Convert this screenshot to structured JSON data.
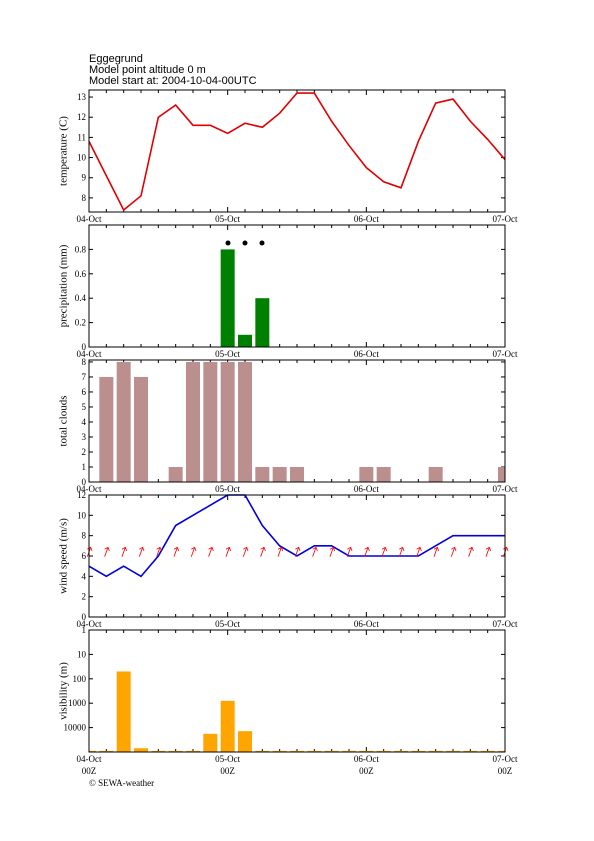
{
  "header": {
    "lines": [
      "Eggegrund",
      "Model point altitude  0 m",
      "Model start at: 2004-10-04-00UTC"
    ]
  },
  "footer": "© SEWA-weather",
  "chart_data": [
    {
      "type": "line",
      "ylabel": "temperature (C)",
      "color": "#e00000",
      "categories": [
        "04-Oct",
        null,
        null,
        null,
        null,
        null,
        null,
        null,
        "05-Oct",
        null,
        null,
        null,
        null,
        null,
        null,
        null,
        "06-Oct",
        null,
        null,
        null,
        null,
        null,
        null,
        null,
        "07-Oct"
      ],
      "values": [
        10.8,
        9.1,
        7.4,
        8.1,
        12.0,
        12.6,
        11.6,
        11.6,
        11.2,
        11.7,
        11.5,
        12.2,
        13.2,
        13.2,
        11.8,
        10.6,
        9.5,
        8.8,
        8.5,
        10.8,
        12.7,
        12.9,
        11.8,
        10.9,
        9.9
      ],
      "ylim": [
        7.3,
        13.35
      ],
      "yticks": [
        8,
        9,
        10,
        11,
        12,
        13
      ]
    },
    {
      "type": "bar",
      "ylabel": "precipitation (mm)",
      "color": "#008000",
      "categories": [
        "04-Oct",
        null,
        null,
        null,
        null,
        null,
        null,
        null,
        "05-Oct",
        null,
        null,
        null,
        null,
        null,
        null,
        null,
        "06-Oct",
        null,
        null,
        null,
        null,
        null,
        null,
        null,
        "07-Oct"
      ],
      "values": [
        0,
        0,
        0,
        0,
        0,
        0,
        0,
        0,
        0.8,
        0.1,
        0.4,
        0,
        0,
        0,
        0,
        0,
        0,
        0,
        0,
        0,
        0,
        0,
        0,
        0,
        0
      ],
      "ylim": [
        0,
        1.0
      ],
      "yticks": [
        0,
        0.2,
        0.4,
        0.6,
        0.8
      ]
    },
    {
      "type": "bar",
      "ylabel": "total clouds",
      "color": "#bc8f8f",
      "categories": [
        "04-Oct",
        null,
        null,
        null,
        null,
        null,
        null,
        null,
        "05-Oct",
        null,
        null,
        null,
        null,
        null,
        null,
        null,
        "06-Oct",
        null,
        null,
        null,
        null,
        null,
        null,
        null,
        "07-Oct"
      ],
      "values": [
        0,
        7,
        8,
        7,
        0,
        1,
        8,
        8,
        8,
        8,
        1,
        1,
        1,
        0,
        0,
        0,
        1,
        1,
        0,
        0,
        1,
        0,
        0,
        0,
        1
      ],
      "ylim": [
        0,
        8.13
      ],
      "yticks": [
        0,
        1,
        2,
        3,
        4,
        5,
        6,
        7,
        8
      ]
    },
    {
      "type": "line",
      "ylabel": "wind speed (m/s)",
      "color": "#0000e0",
      "categories": [
        "04-Oct",
        null,
        null,
        null,
        null,
        null,
        null,
        null,
        "05-Oct",
        null,
        null,
        null,
        null,
        null,
        null,
        null,
        "06-Oct",
        null,
        null,
        null,
        null,
        null,
        null,
        null,
        "07-Oct"
      ],
      "values": [
        5,
        4,
        5,
        4,
        6,
        9,
        10,
        11,
        12,
        12,
        9,
        7,
        6,
        7,
        7,
        6,
        6,
        6,
        6,
        6,
        7,
        8,
        8,
        8,
        8
      ],
      "ylim": [
        0,
        12
      ],
      "yticks": [
        0,
        2,
        4,
        6,
        8,
        10,
        12
      ],
      "wind_direction": {
        "color": "#ff0000",
        "values": [
          200,
          200,
          200,
          200,
          200,
          200,
          200,
          200,
          200,
          200,
          200,
          200,
          200,
          200,
          200,
          200,
          200,
          200,
          200,
          200,
          200,
          200,
          200,
          200,
          200
        ]
      }
    },
    {
      "type": "bar",
      "ylabel": "visibility (m)",
      "color": "#ffa500",
      "log": true,
      "inverted": true,
      "categories": [
        "04-Oct",
        null,
        null,
        null,
        null,
        null,
        null,
        null,
        "05-Oct",
        null,
        null,
        null,
        null,
        null,
        null,
        null,
        "06-Oct",
        null,
        null,
        null,
        null,
        null,
        null,
        null,
        "07-Oct"
      ],
      "categories2": [
        "00Z",
        null,
        null,
        null,
        null,
        null,
        null,
        null,
        "00Z",
        null,
        null,
        null,
        null,
        null,
        null,
        null,
        "00Z",
        null,
        null,
        null,
        null,
        null,
        null,
        null,
        "00Z"
      ],
      "values": [
        90000,
        90000,
        50,
        70000,
        90000,
        90000,
        90000,
        18000,
        800,
        14000,
        90000,
        90000,
        90000,
        90000,
        90000,
        90000,
        90000,
        90000,
        90000,
        90000,
        90000,
        90000,
        90000,
        90000,
        90000
      ],
      "ylim": [
        1,
        100000
      ],
      "yticks": [
        1,
        10,
        100,
        1000,
        10000
      ]
    }
  ]
}
